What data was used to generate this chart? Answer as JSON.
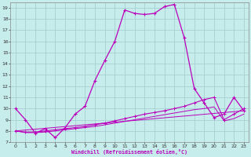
{
  "xlabel": "Windchill (Refroidissement éolien,°C)",
  "xlim": [
    -0.5,
    23.5
  ],
  "ylim": [
    7,
    19.5
  ],
  "yticks": [
    7,
    8,
    9,
    10,
    11,
    12,
    13,
    14,
    15,
    16,
    17,
    18,
    19
  ],
  "xticks": [
    0,
    1,
    2,
    3,
    4,
    5,
    6,
    7,
    8,
    9,
    10,
    11,
    12,
    13,
    14,
    15,
    16,
    17,
    18,
    19,
    20,
    21,
    22,
    23
  ],
  "background_color": "#c6ecec",
  "grid_color": "#a0cccc",
  "line_color": "#bb00bb",
  "line1_x": [
    0,
    1,
    2,
    3,
    4,
    5,
    6,
    7,
    8,
    9,
    10,
    11,
    12,
    13,
    14,
    15,
    16,
    17,
    18,
    19,
    20,
    21,
    22,
    23
  ],
  "line1_y": [
    10.0,
    9.0,
    7.8,
    8.2,
    7.4,
    8.3,
    9.5,
    10.2,
    12.5,
    14.3,
    16.0,
    18.8,
    18.5,
    18.4,
    18.5,
    19.1,
    19.3,
    16.3,
    11.8,
    10.5,
    9.2,
    9.5,
    11.0,
    9.8
  ],
  "line2_x": [
    0,
    1,
    2,
    3,
    4,
    5,
    6,
    7,
    8,
    9,
    10,
    11,
    12,
    13,
    14,
    15,
    16,
    17,
    18,
    19,
    20,
    21,
    22,
    23
  ],
  "line2_y": [
    8.0,
    7.9,
    7.9,
    8.0,
    8.1,
    8.2,
    8.3,
    8.4,
    8.55,
    8.7,
    8.9,
    9.1,
    9.3,
    9.5,
    9.65,
    9.8,
    10.0,
    10.2,
    10.5,
    10.8,
    11.0,
    9.0,
    9.5,
    10.0
  ],
  "line3_x": [
    0,
    1,
    2,
    3,
    4,
    5,
    6,
    7,
    8,
    9,
    10,
    11,
    12,
    13,
    14,
    15,
    16,
    17,
    18,
    19,
    20,
    21,
    22,
    23
  ],
  "line3_y": [
    8.0,
    7.85,
    7.85,
    7.9,
    8.0,
    8.1,
    8.2,
    8.3,
    8.4,
    8.55,
    8.7,
    8.85,
    9.0,
    9.15,
    9.3,
    9.45,
    9.6,
    9.75,
    9.9,
    10.0,
    10.15,
    8.9,
    9.1,
    9.5
  ],
  "line4_x": [
    0,
    23
  ],
  "line4_y": [
    8.0,
    9.8
  ]
}
